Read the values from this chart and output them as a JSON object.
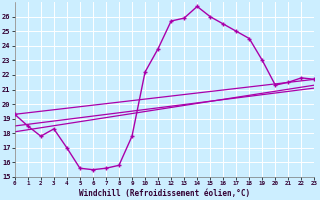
{
  "xlabel": "Windchill (Refroidissement éolien,°C)",
  "background_color": "#cceeff",
  "grid_color": "#ffffff",
  "line_color": "#aa00aa",
  "xmin": 0,
  "xmax": 23,
  "ymin": 15,
  "ymax": 27,
  "line1_x": [
    0,
    1,
    2,
    3,
    4,
    5,
    6,
    7,
    8,
    9,
    10,
    11,
    12,
    13,
    14,
    15,
    16,
    17,
    18,
    19,
    20,
    21,
    22,
    23
  ],
  "line1_y": [
    19.3,
    18.5,
    17.8,
    18.3,
    17.0,
    15.6,
    15.5,
    15.6,
    15.8,
    17.8,
    22.2,
    23.8,
    25.7,
    25.9,
    26.7,
    26.0,
    25.5,
    25.0,
    24.5,
    23.0,
    21.3,
    21.5,
    21.8,
    21.7
  ],
  "line3_x": [
    0,
    23
  ],
  "line3_y": [
    18.1,
    21.3
  ],
  "line4_x": [
    0,
    23
  ],
  "line4_y": [
    18.5,
    21.1
  ],
  "line5_x": [
    0,
    23
  ],
  "line5_y": [
    19.3,
    21.7
  ],
  "yticks": [
    15,
    16,
    17,
    18,
    19,
    20,
    21,
    22,
    23,
    24,
    25,
    26
  ],
  "xticks": [
    0,
    1,
    2,
    3,
    4,
    5,
    6,
    7,
    8,
    9,
    10,
    11,
    12,
    13,
    14,
    15,
    16,
    17,
    18,
    19,
    20,
    21,
    22,
    23
  ]
}
